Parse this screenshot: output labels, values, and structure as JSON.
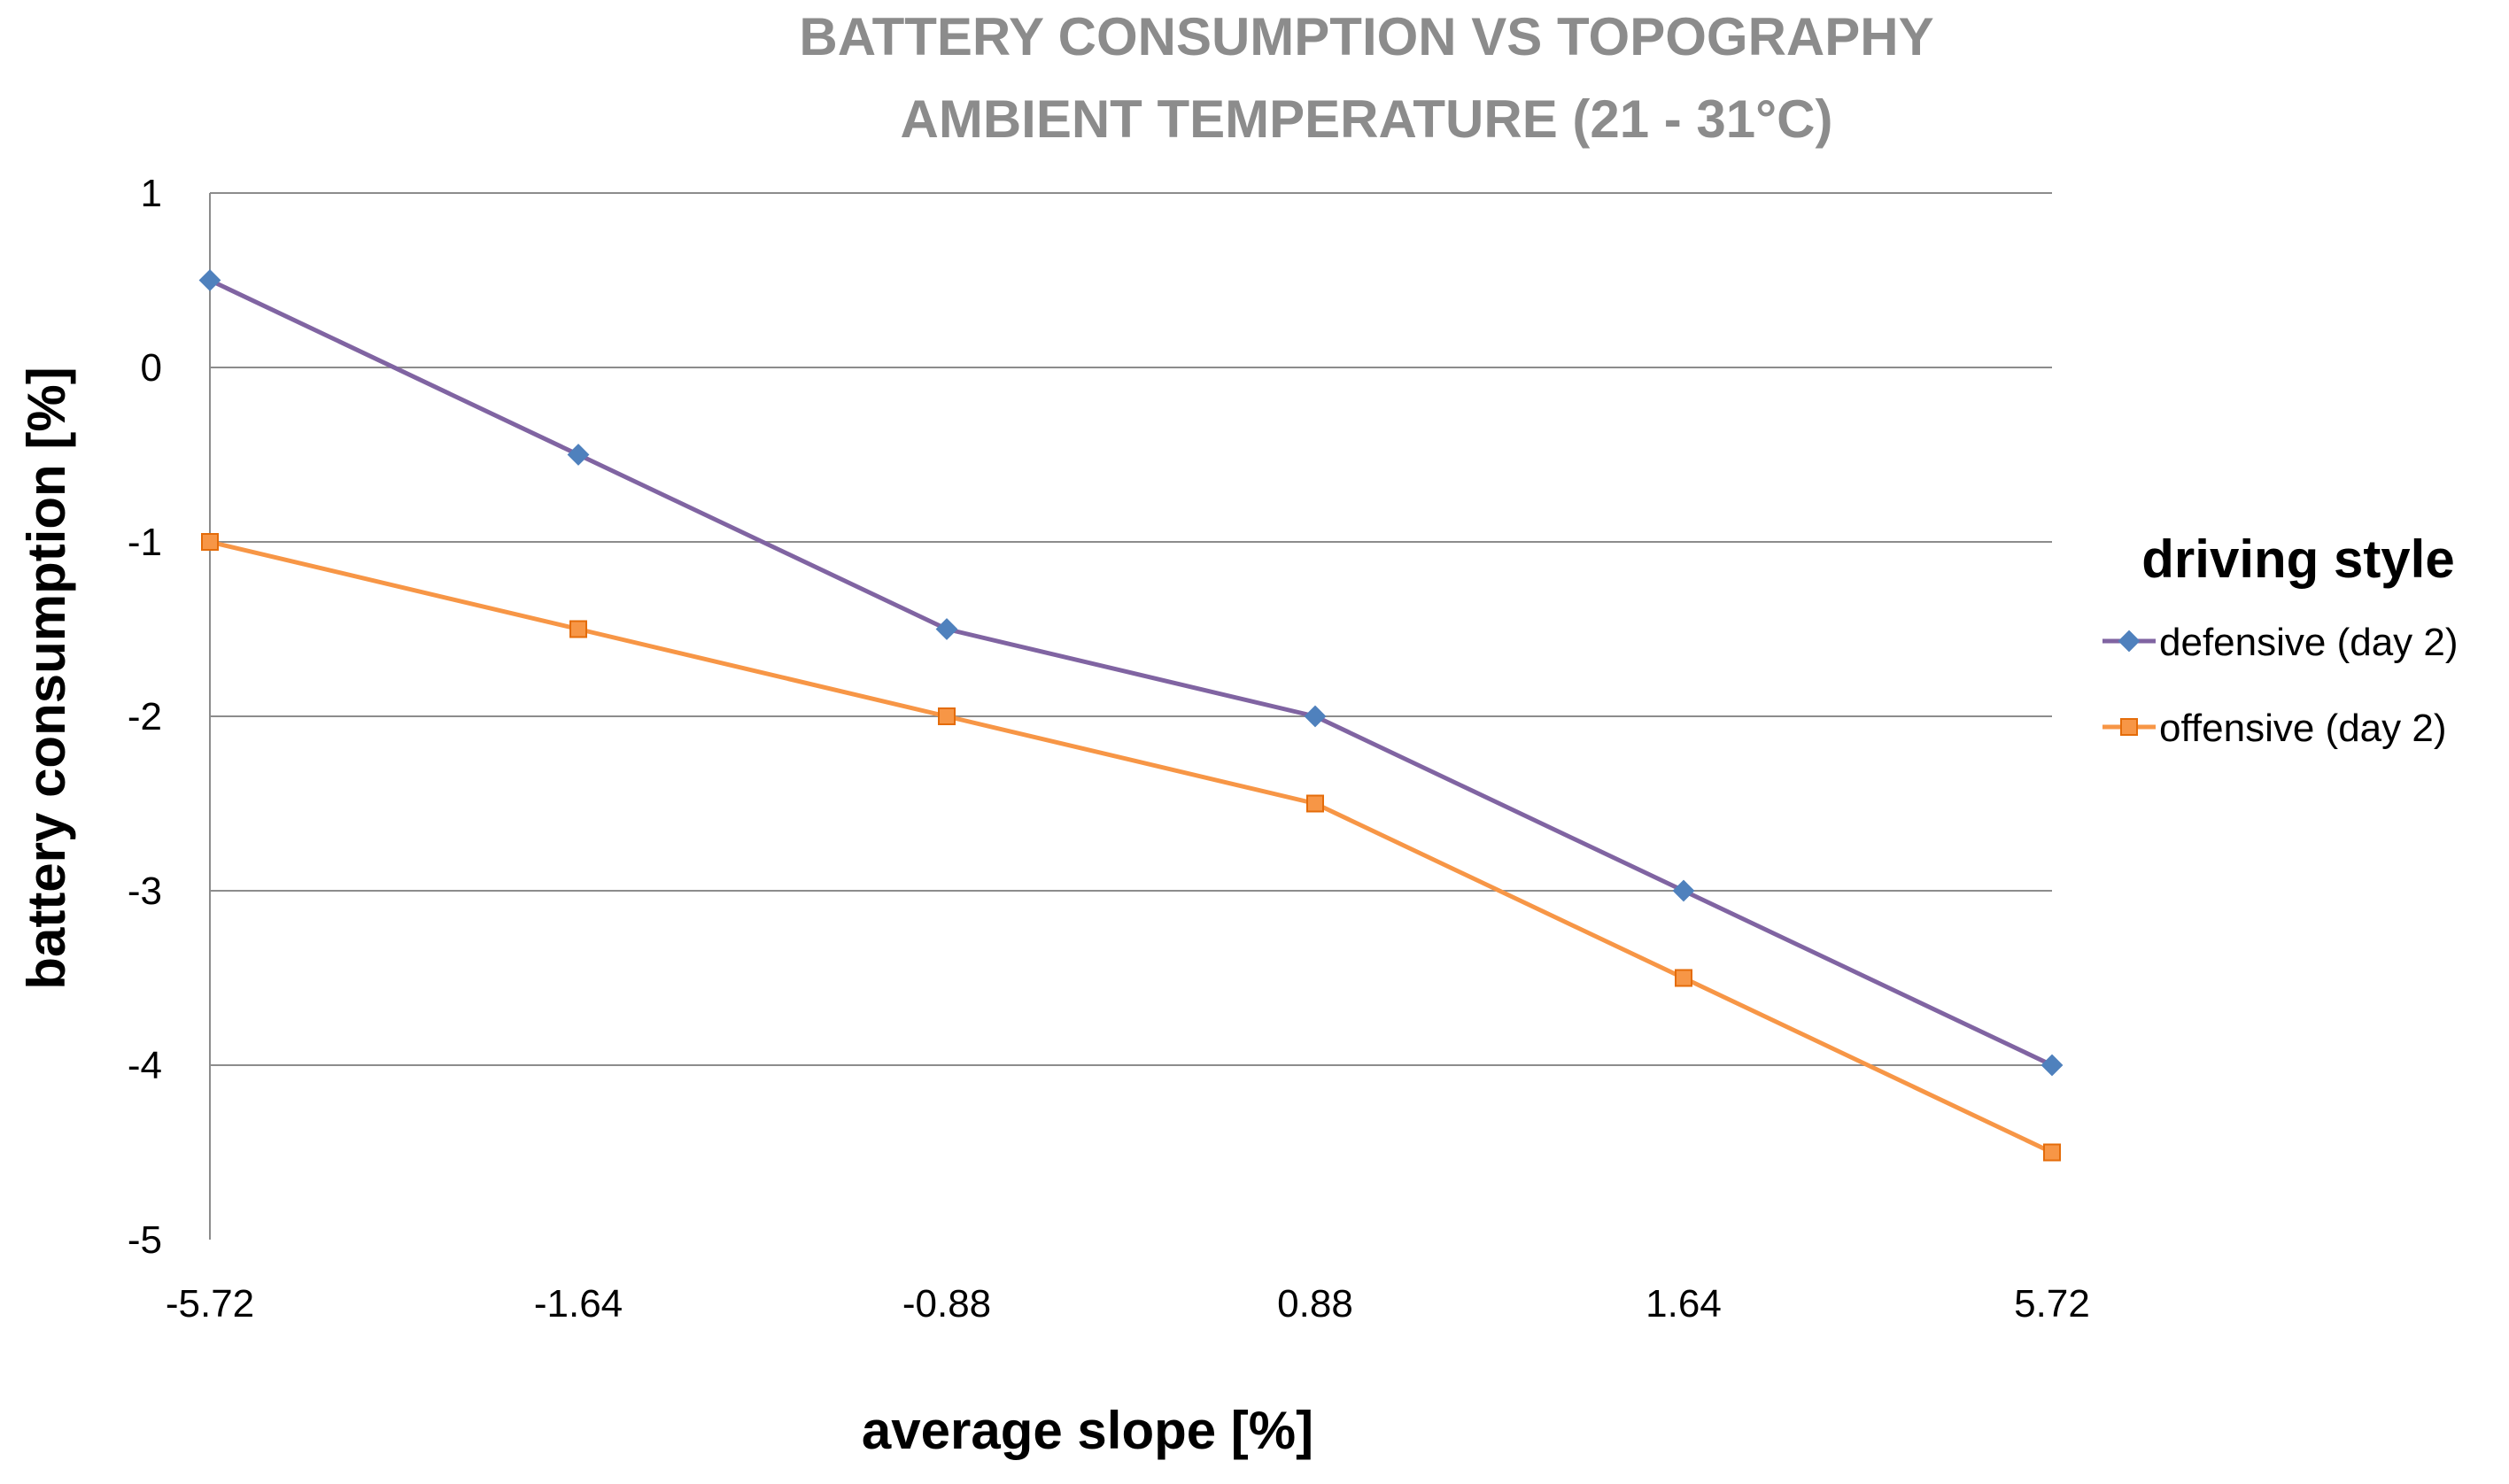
{
  "chart_data": {
    "type": "line",
    "title_lines": [
      "BATTERY CONSUMPTION VS TOPOGRAPHY",
      "AMBIENT TEMPERATURE (21 - 31°C)"
    ],
    "xlabel": "average slope [%]",
    "ylabel": "battery consumption [%]",
    "categories": [
      "-5.72",
      "-1.64",
      "-0.88",
      "0.88",
      "1.64",
      "5.72"
    ],
    "ylim": [
      -5,
      1
    ],
    "yticks": [
      "1",
      "0",
      "-1",
      "-2",
      "-3",
      "-4",
      "-5"
    ],
    "grid": true,
    "legend": {
      "title": "driving style",
      "position": "right"
    },
    "series": [
      {
        "name": "defensive (day 2)",
        "values": [
          0.5,
          -0.5,
          -1.5,
          -2,
          -3,
          -4
        ],
        "color": "#8064a2",
        "marker_color": "#4f81bd",
        "marker": "diamond"
      },
      {
        "name": "offensive (day 2)",
        "values": [
          -1,
          -1.5,
          -2,
          -2.5,
          -3.5,
          -4.5
        ],
        "color": "#f79646",
        "marker_color": "#f79646",
        "marker": "square"
      }
    ]
  }
}
